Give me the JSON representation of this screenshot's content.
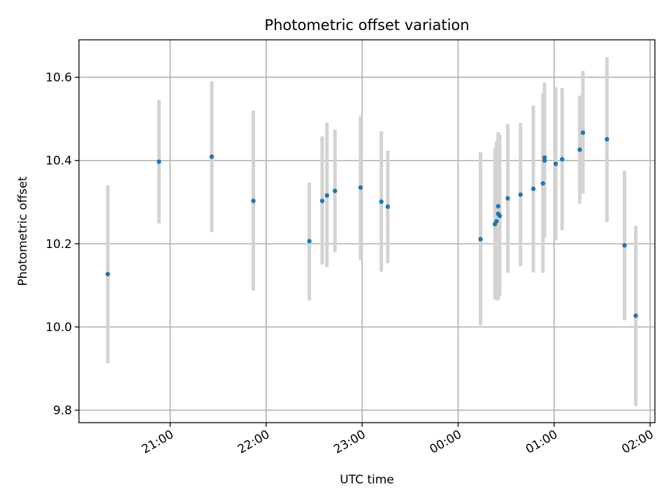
{
  "chart_data": {
    "type": "scatter",
    "title": "Photometric offset variation",
    "xlabel": "UTC time",
    "ylabel": "Photometric offset",
    "ylim": [
      9.77,
      10.69
    ],
    "xlim": [
      "20:03",
      "02:03"
    ],
    "grid": true,
    "yticks": [
      9.8,
      10.0,
      10.2,
      10.4,
      10.6
    ],
    "xticks": [
      "21:00",
      "22:00",
      "23:00",
      "00:00",
      "01:00",
      "02:00"
    ],
    "colors": {
      "point": "#1f77b4",
      "errorbar": "#d3d3d3"
    },
    "points": [
      {
        "t": "20:21",
        "y": 10.127,
        "ylo": 9.913,
        "yhi": 10.34
      },
      {
        "t": "20:53",
        "y": 10.397,
        "ylo": 10.249,
        "yhi": 10.546
      },
      {
        "t": "21:26",
        "y": 10.409,
        "ylo": 10.228,
        "yhi": 10.59
      },
      {
        "t": "21:52",
        "y": 10.303,
        "ylo": 10.087,
        "yhi": 10.52
      },
      {
        "t": "22:27",
        "y": 10.206,
        "ylo": 10.064,
        "yhi": 10.347
      },
      {
        "t": "22:35",
        "y": 10.303,
        "ylo": 10.15,
        "yhi": 10.458
      },
      {
        "t": "22:38",
        "y": 10.316,
        "ylo": 10.144,
        "yhi": 10.491
      },
      {
        "t": "22:43",
        "y": 10.327,
        "ylo": 10.18,
        "yhi": 10.474
      },
      {
        "t": "22:59",
        "y": 10.335,
        "ylo": 10.161,
        "yhi": 10.508
      },
      {
        "t": "23:12",
        "y": 10.301,
        "ylo": 10.133,
        "yhi": 10.47
      },
      {
        "t": "23:16",
        "y": 10.289,
        "ylo": 10.153,
        "yhi": 10.424
      },
      {
        "t": "00:14",
        "y": 10.211,
        "ylo": 10.004,
        "yhi": 10.42
      },
      {
        "t": "00:23",
        "y": 10.247,
        "ylo": 10.066,
        "yhi": 10.429
      },
      {
        "t": "00:24",
        "y": 10.254,
        "ylo": 10.065,
        "yhi": 10.446
      },
      {
        "t": "00:25",
        "y": 10.272,
        "ylo": 10.064,
        "yhi": 10.468
      },
      {
        "t": "00:25",
        "y": 10.29,
        "ylo": 10.09,
        "yhi": 10.455
      },
      {
        "t": "00:26",
        "y": 10.267,
        "ylo": 10.075,
        "yhi": 10.462
      },
      {
        "t": "00:31",
        "y": 10.309,
        "ylo": 10.13,
        "yhi": 10.488
      },
      {
        "t": "00:39",
        "y": 10.318,
        "ylo": 10.146,
        "yhi": 10.49
      },
      {
        "t": "00:47",
        "y": 10.332,
        "ylo": 10.131,
        "yhi": 10.532
      },
      {
        "t": "00:53",
        "y": 10.345,
        "ylo": 10.13,
        "yhi": 10.56
      },
      {
        "t": "00:54",
        "y": 10.4,
        "ylo": 10.215,
        "yhi": 10.574
      },
      {
        "t": "00:54",
        "y": 10.407,
        "ylo": 10.228,
        "yhi": 10.587
      },
      {
        "t": "01:01",
        "y": 10.392,
        "ylo": 10.208,
        "yhi": 10.576
      },
      {
        "t": "01:05",
        "y": 10.403,
        "ylo": 10.232,
        "yhi": 10.574
      },
      {
        "t": "01:16",
        "y": 10.426,
        "ylo": 10.296,
        "yhi": 10.556
      },
      {
        "t": "01:18",
        "y": 10.467,
        "ylo": 10.32,
        "yhi": 10.615
      },
      {
        "t": "01:33",
        "y": 10.451,
        "ylo": 10.252,
        "yhi": 10.648
      },
      {
        "t": "01:44",
        "y": 10.196,
        "ylo": 10.016,
        "yhi": 10.375
      },
      {
        "t": "01:51",
        "y": 10.027,
        "ylo": 9.81,
        "yhi": 10.243
      }
    ]
  }
}
